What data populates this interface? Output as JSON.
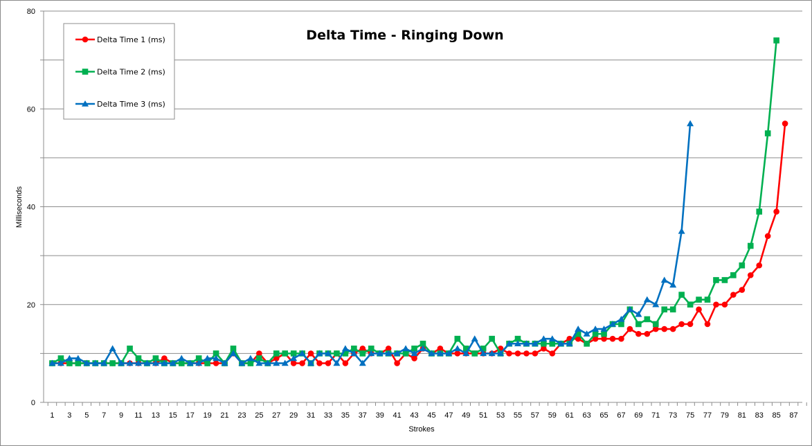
{
  "chart_data": {
    "type": "line",
    "title": "Delta Time - Ringing Down",
    "xlabel": "Strokes",
    "ylabel": "Milliseconds",
    "xlim": [
      0,
      88
    ],
    "ylim": [
      0,
      80
    ],
    "x_tick_labels": [
      1,
      3,
      5,
      7,
      9,
      11,
      13,
      15,
      17,
      19,
      21,
      23,
      25,
      27,
      29,
      31,
      33,
      35,
      37,
      39,
      41,
      43,
      45,
      47,
      49,
      51,
      53,
      55,
      57,
      59,
      61,
      63,
      65,
      67,
      69,
      71,
      73,
      75,
      77,
      79,
      81,
      83,
      85,
      87
    ],
    "y_tick_labels": [
      0,
      20,
      40,
      60,
      80
    ],
    "grid": "horizontal",
    "legend_position": "top-left",
    "series": [
      {
        "name": "Delta Time 1 (ms)",
        "color": "#ff0000",
        "marker": "circle",
        "values": [
          8,
          8,
          8,
          8,
          8,
          8,
          8,
          8,
          8,
          8,
          8,
          8,
          8,
          9,
          8,
          8,
          8,
          8,
          8,
          8,
          8,
          10,
          8,
          8,
          10,
          8,
          9,
          10,
          8,
          8,
          10,
          8,
          8,
          10,
          8,
          10,
          11,
          10,
          10,
          11,
          8,
          10,
          9,
          11,
          10,
          11,
          10,
          10,
          10,
          10,
          10,
          10,
          11,
          10,
          10,
          10,
          10,
          11,
          10,
          12,
          13,
          13,
          12,
          13,
          13,
          13,
          13,
          15,
          14,
          14,
          15,
          15,
          15,
          16,
          16,
          19,
          16,
          20,
          20,
          22,
          23,
          26,
          28,
          34,
          39,
          57
        ]
      },
      {
        "name": "Delta Time 2 (ms)",
        "color": "#00b050",
        "marker": "square",
        "values": [
          8,
          9,
          8,
          8,
          8,
          8,
          8,
          8,
          8,
          11,
          9,
          8,
          9,
          8,
          8,
          8,
          8,
          9,
          8,
          10,
          8,
          11,
          8,
          8,
          9,
          8,
          10,
          10,
          10,
          10,
          8,
          10,
          10,
          10,
          10,
          11,
          10,
          11,
          10,
          10,
          10,
          10,
          11,
          12,
          10,
          10,
          10,
          13,
          11,
          10,
          11,
          13,
          10,
          12,
          13,
          12,
          12,
          12,
          12,
          12,
          12,
          14,
          12,
          14,
          14,
          16,
          16,
          19,
          16,
          17,
          16,
          19,
          19,
          22,
          20,
          21,
          21,
          25,
          25,
          26,
          28,
          32,
          39,
          55,
          74
        ]
      },
      {
        "name": "Delta Time 3 (ms)",
        "color": "#0070c0",
        "marker": "triangle",
        "values": [
          8,
          8,
          9,
          9,
          8,
          8,
          8,
          11,
          8,
          8,
          8,
          8,
          8,
          8,
          8,
          9,
          8,
          8,
          9,
          9,
          8,
          10,
          8,
          9,
          8,
          8,
          8,
          8,
          9,
          10,
          8,
          10,
          10,
          8,
          11,
          10,
          8,
          10,
          10,
          10,
          10,
          11,
          10,
          11,
          10,
          10,
          10,
          11,
          10,
          13,
          10,
          10,
          10,
          12,
          12,
          12,
          12,
          13,
          13,
          12,
          12,
          15,
          14,
          15,
          15,
          16,
          17,
          19,
          18,
          21,
          20,
          25,
          24,
          35,
          57
        ]
      }
    ]
  }
}
